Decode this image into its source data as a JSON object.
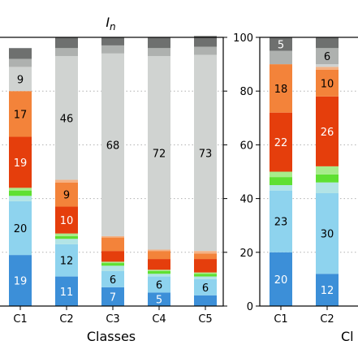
{
  "chart_data": [
    {
      "type": "bar",
      "stacked": true,
      "title": "I",
      "title_subscript": "n",
      "xlabel": "Classes",
      "ylabel": "",
      "categories": [
        "C1",
        "C2",
        "C3",
        "C4",
        "C5"
      ],
      "ylim": [
        0,
        100
      ],
      "grid": "horizontal-dotted",
      "right_ticks": true,
      "series": [
        {
          "color": "#3c8fd8",
          "label_color": "#ffffff",
          "values": [
            19,
            11,
            7,
            5,
            4
          ],
          "labels": [
            "19",
            "11",
            "7",
            "5",
            ""
          ]
        },
        {
          "color": "#8ed3ee",
          "label_color": "#000000",
          "values": [
            20,
            12,
            6,
            6,
            6
          ],
          "labels": [
            "20",
            "12",
            "6",
            "6",
            "6"
          ]
        },
        {
          "color": "#b2e4e6",
          "label_color": "#000000",
          "values": [
            2,
            2,
            2,
            1,
            1
          ],
          "labels": [
            "",
            "",
            "",
            "",
            ""
          ]
        },
        {
          "color": "#5fe032",
          "label_color": "#000000",
          "values": [
            2,
            1,
            1,
            1,
            1
          ],
          "labels": [
            "",
            "",
            "",
            "",
            ""
          ]
        },
        {
          "color": "#a7ec8b",
          "label_color": "#000000",
          "values": [
            1,
            1,
            0.5,
            0.5,
            0.5
          ],
          "labels": [
            "",
            "",
            "",
            "",
            ""
          ]
        },
        {
          "color": "#e53e0c",
          "label_color": "#ffffff",
          "values": [
            19,
            10,
            4,
            4,
            5
          ],
          "labels": [
            "19",
            "10",
            "",
            "",
            ""
          ]
        },
        {
          "color": "#f3833a",
          "label_color": "#000000",
          "values": [
            17,
            9,
            5,
            3,
            2
          ],
          "labels": [
            "17",
            "9",
            "",
            "",
            ""
          ]
        },
        {
          "color": "#f4b183",
          "label_color": "#000000",
          "values": [
            0,
            1,
            0.5,
            0.5,
            1
          ],
          "labels": [
            "",
            "",
            "",
            "",
            ""
          ]
        },
        {
          "color": "#d0d3d1",
          "label_color": "#000000",
          "values": [
            9,
            46,
            68,
            72,
            73
          ],
          "labels": [
            "9",
            "46",
            "68",
            "72",
            "73"
          ]
        },
        {
          "color": "#aeb1af",
          "label_color": "#000000",
          "values": [
            3,
            3,
            3,
            3,
            3
          ],
          "labels": [
            "",
            "",
            "",
            "",
            ""
          ]
        },
        {
          "color": "#6e706f",
          "label_color": "#ffffff",
          "values": [
            4,
            4,
            3,
            4,
            4
          ],
          "labels": [
            "",
            "",
            "",
            "",
            ""
          ]
        }
      ]
    },
    {
      "type": "bar",
      "stacked": true,
      "title": "",
      "xlabel": "Cl",
      "ylabel": "",
      "categories": [
        "C1",
        "C2"
      ],
      "ylim": [
        0,
        100
      ],
      "yticks": [
        0,
        20,
        40,
        60,
        80,
        100
      ],
      "grid": "horizontal-dotted",
      "series": [
        {
          "color": "#3c8fd8",
          "label_color": "#ffffff",
          "values": [
            20,
            12
          ],
          "labels": [
            "20",
            "12"
          ]
        },
        {
          "color": "#8ed3ee",
          "label_color": "#000000",
          "values": [
            23,
            30
          ],
          "labels": [
            "23",
            "30"
          ]
        },
        {
          "color": "#b2e4e6",
          "label_color": "#000000",
          "values": [
            2,
            4
          ],
          "labels": [
            "",
            ""
          ]
        },
        {
          "color": "#5fe032",
          "label_color": "#000000",
          "values": [
            3,
            3
          ],
          "labels": [
            "",
            ""
          ]
        },
        {
          "color": "#a7ec8b",
          "label_color": "#000000",
          "values": [
            2,
            3
          ],
          "labels": [
            "",
            ""
          ]
        },
        {
          "color": "#e53e0c",
          "label_color": "#ffffff",
          "values": [
            22,
            26
          ],
          "labels": [
            "22",
            "26"
          ]
        },
        {
          "color": "#f3833a",
          "label_color": "#000000",
          "values": [
            18,
            10
          ],
          "labels": [
            "18",
            "10"
          ]
        },
        {
          "color": "#f4b183",
          "label_color": "#000000",
          "values": [
            0,
            1
          ],
          "labels": [
            "",
            ""
          ]
        },
        {
          "color": "#d0d3d1",
          "label_color": "#000000",
          "values": [
            0,
            1
          ],
          "labels": [
            "",
            ""
          ]
        },
        {
          "color": "#aeb1af",
          "label_color": "#000000",
          "values": [
            5,
            6
          ],
          "labels": [
            "",
            "6"
          ]
        },
        {
          "color": "#6e706f",
          "label_color": "#ffffff",
          "values": [
            5,
            4
          ],
          "labels": [
            "5",
            ""
          ]
        }
      ]
    }
  ]
}
